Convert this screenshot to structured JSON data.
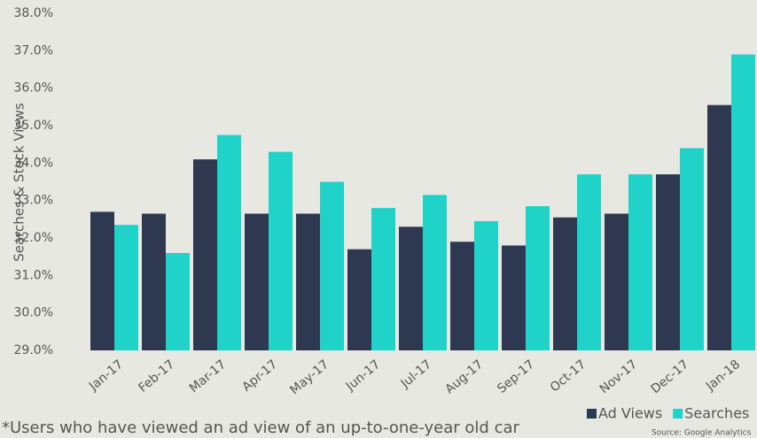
{
  "chart_data": {
    "type": "bar",
    "y_axis_label": "Searches & Stock Views",
    "footnote": "*Users who have viewed an ad view of an up-to-one-year old car",
    "source": "Source: Google Analytics",
    "categories": [
      "Jan-17",
      "Feb-17",
      "Mar-17",
      "Apr-17",
      "May-17",
      "Jun-17",
      "Jul-17",
      "Aug-17",
      "Sep-17",
      "Oct-17",
      "Nov-17",
      "Dec-17",
      "Jan-18"
    ],
    "series": [
      {
        "name": "Ad Views",
        "color": "#2e3850",
        "values": [
          32.7,
          32.65,
          34.1,
          32.65,
          32.65,
          31.7,
          32.3,
          31.9,
          31.8,
          32.55,
          32.65,
          33.7,
          35.55
        ]
      },
      {
        "name": "Searches",
        "color": "#1fd3c9",
        "values": [
          32.35,
          31.6,
          34.75,
          34.3,
          33.5,
          32.8,
          33.15,
          32.45,
          32.85,
          33.7,
          33.7,
          34.4,
          36.9
        ]
      }
    ],
    "ylim": [
      29,
      38
    ],
    "yticks": [
      {
        "value": 29,
        "label": "29.0%"
      },
      {
        "value": 30,
        "label": "30.0%"
      },
      {
        "value": 31,
        "label": "31.0%"
      },
      {
        "value": 32,
        "label": "32.0%"
      },
      {
        "value": 33,
        "label": "33.0%"
      },
      {
        "value": 34,
        "label": "34.0%"
      },
      {
        "value": 35,
        "label": "35.0%"
      },
      {
        "value": 36,
        "label": "36.0%"
      },
      {
        "value": 37,
        "label": "37.0%"
      },
      {
        "value": 38,
        "label": "38.0%"
      }
    ],
    "legend": "bottom-right"
  }
}
